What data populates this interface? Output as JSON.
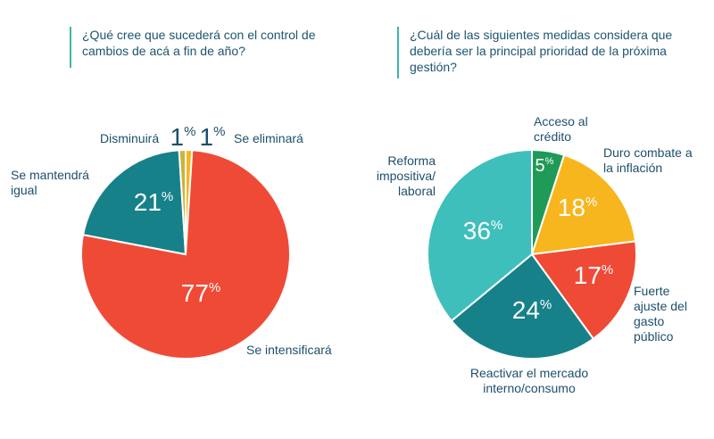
{
  "colors": {
    "red": "#ef4a36",
    "teal_dark": "#17818a",
    "teal_light": "#3fbfbc",
    "green": "#1f9a57",
    "yellow": "#f7b61e",
    "olive": "#c9b43c",
    "accent_line": "#3fb6a8",
    "text": "#1d4f6b"
  },
  "chart_data": [
    {
      "type": "pie",
      "title": "¿Qué cree que sucederá con el control de cambios de acá a fin de año?",
      "slices": [
        {
          "label": "Se intensificará",
          "value": 77,
          "value_label": "77",
          "color": "#ef4a36"
        },
        {
          "label": "Se mantendrá igual",
          "value": 21,
          "value_label": "21",
          "color": "#17818a"
        },
        {
          "label": "Disminuirá",
          "value": 1,
          "value_label": "1",
          "color": "#c9b43c"
        },
        {
          "label": "Se eliminará",
          "value": 1,
          "value_label": "1",
          "color": "#f7b61e"
        }
      ]
    },
    {
      "type": "pie",
      "title": "¿Cuál de las siguientes medidas considera que debería ser la principal prioridad de la próxima gestión?",
      "slices": [
        {
          "label": "Acceso al crédito",
          "value": 5,
          "value_label": "5",
          "color": "#1f9a57"
        },
        {
          "label": "Duro combate a la inflación",
          "value": 18,
          "value_label": "18",
          "color": "#f7b61e"
        },
        {
          "label": "Fuerte ajuste del gasto público",
          "value": 17,
          "value_label": "17",
          "color": "#ef4a36"
        },
        {
          "label": "Reactivar el mercado interno/consumo",
          "value": 24,
          "value_label": "24",
          "color": "#17818a"
        },
        {
          "label": "Reforma impositiva/ laboral",
          "value": 36,
          "value_label": "36",
          "color": "#3fbfbc"
        }
      ]
    }
  ]
}
